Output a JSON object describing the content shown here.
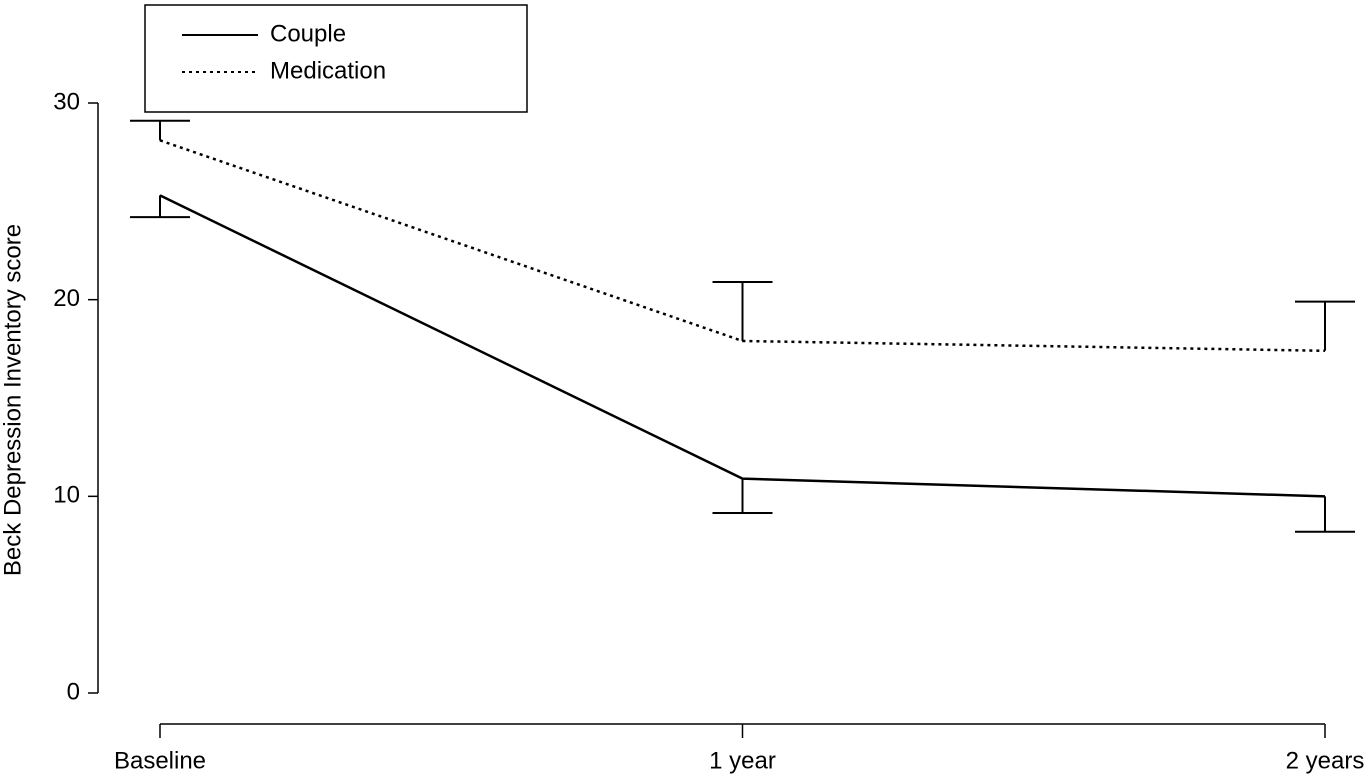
{
  "chart_data": {
    "type": "line",
    "y_label": "Beck Depression Inventory score",
    "categories": [
      "Baseline",
      "1 year",
      "2 years"
    ],
    "series": [
      {
        "name": "Couple",
        "color": "#000000",
        "line_style": "solid",
        "error_direction": "down",
        "values": [
          25.3,
          10.9,
          10.0
        ],
        "errors": [
          1.1,
          1.75,
          1.8
        ]
      },
      {
        "name": "Medication",
        "color": "#000000",
        "line_style": "dotted",
        "error_direction": "up",
        "values": [
          28.1,
          17.9,
          17.4
        ],
        "errors": [
          1.0,
          3.0,
          2.5
        ]
      }
    ],
    "ylim": [
      0,
      30
    ],
    "yticks": [
      0,
      10,
      20,
      30
    ],
    "legend": "upper left",
    "grid": false
  }
}
